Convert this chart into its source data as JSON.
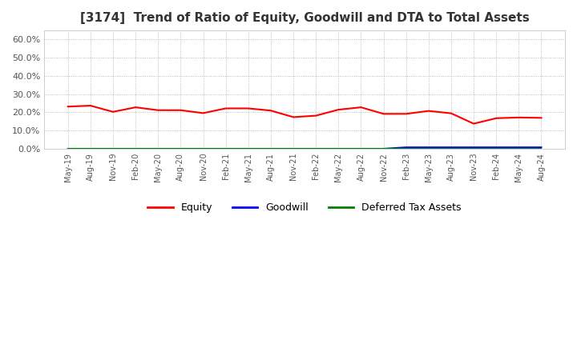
{
  "title": "[3174]  Trend of Ratio of Equity, Goodwill and DTA to Total Assets",
  "title_fontsize": 11,
  "x_labels": [
    "May-19",
    "Aug-19",
    "Nov-19",
    "Feb-20",
    "May-20",
    "Aug-20",
    "Nov-20",
    "Feb-21",
    "May-21",
    "Aug-21",
    "Nov-21",
    "Feb-22",
    "May-22",
    "Aug-22",
    "Nov-22",
    "Feb-23",
    "May-23",
    "Aug-23",
    "Nov-23",
    "Feb-24",
    "May-24",
    "Aug-24"
  ],
  "equity": [
    0.232,
    0.237,
    0.203,
    0.228,
    0.212,
    0.212,
    0.196,
    0.222,
    0.222,
    0.21,
    0.174,
    0.182,
    0.215,
    0.228,
    0.192,
    0.192,
    0.208,
    0.195,
    0.138,
    0.168,
    0.172,
    0.17
  ],
  "goodwill": [
    0.0,
    0.0,
    0.0,
    0.0,
    0.0,
    0.0,
    0.0,
    0.0,
    0.0,
    0.0,
    0.0,
    0.0,
    0.0,
    0.0,
    0.0,
    0.008,
    0.008,
    0.008,
    0.008,
    0.008,
    0.008,
    0.008
  ],
  "dta": [
    0.0,
    0.0,
    0.0,
    0.0,
    0.0,
    0.0,
    0.0,
    0.0,
    0.0,
    0.0,
    0.0,
    0.0,
    0.0,
    0.0,
    0.0,
    0.0,
    0.0,
    0.0,
    0.0,
    0.0,
    0.0,
    0.0
  ],
  "equity_color": "#FF0000",
  "goodwill_color": "#0000FF",
  "dta_color": "#008000",
  "ylim": [
    0.0,
    0.65
  ],
  "yticks": [
    0.0,
    0.1,
    0.2,
    0.3,
    0.4,
    0.5,
    0.6
  ],
  "background_color": "#FFFFFF",
  "plot_bg_color": "#FFFFFF",
  "grid_color": "#AAAAAA",
  "legend_labels": [
    "Equity",
    "Goodwill",
    "Deferred Tax Assets"
  ]
}
